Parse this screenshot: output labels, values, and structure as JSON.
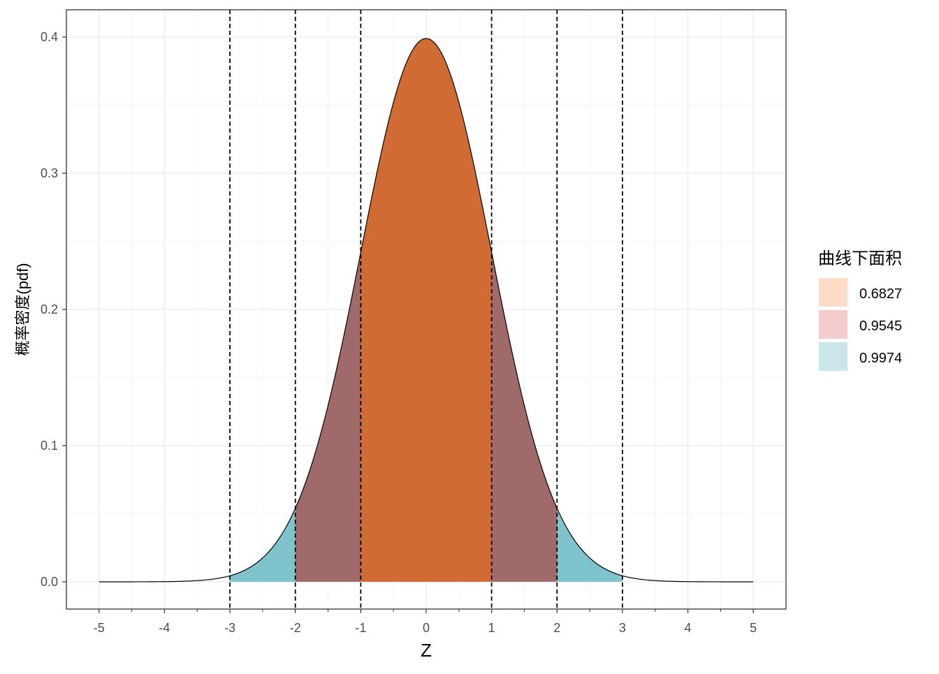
{
  "chart_data": {
    "type": "area",
    "title": "",
    "xlabel": "Z",
    "ylabel": "概率密度(pdf)",
    "xlim": [
      -5.5,
      5.5
    ],
    "ylim": [
      -0.02,
      0.42
    ],
    "x_ticks": [
      "-5",
      "-4",
      "-3",
      "-2",
      "-1",
      "0",
      "1",
      "2",
      "3",
      "4",
      "5"
    ],
    "y_ticks": [
      "0.0",
      "0.1",
      "0.2",
      "0.3",
      "0.4"
    ],
    "x_tick_values": [
      -5,
      -4,
      -3,
      -2,
      -1,
      0,
      1,
      2,
      3,
      4,
      5
    ],
    "y_tick_values": [
      0,
      0.1,
      0.2,
      0.3,
      0.4
    ],
    "curve": {
      "distribution": "standard normal pdf",
      "x_range": [
        -5,
        5
      ],
      "peak": 0.3989
    },
    "vlines": [
      -3,
      -2,
      -1,
      1,
      2,
      3
    ],
    "grid": true,
    "legend": {
      "title": "曲线下面积",
      "placement": "right",
      "entries": [
        {
          "label": "0.6827",
          "range": [
            -1,
            1
          ],
          "color": "#FDDBC7",
          "fill_color": "#D06C33"
        },
        {
          "label": "0.9545",
          "range": [
            -2,
            2
          ],
          "color": "#F4CCCC",
          "fill_color": "#A06A6A"
        },
        {
          "label": "0.9974",
          "range": [
            -3,
            3
          ],
          "color": "#CBE6EA",
          "fill_color": "#7FC4CC"
        }
      ]
    }
  }
}
